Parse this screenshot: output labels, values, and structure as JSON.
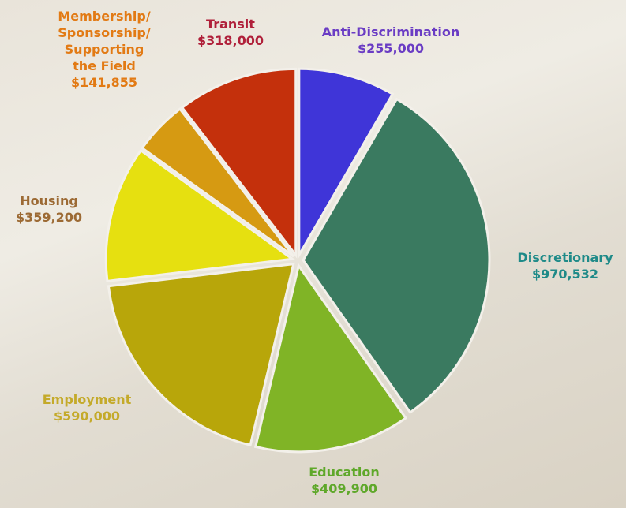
{
  "chart_data": {
    "type": "pie",
    "categories": [
      "Anti-Discrimination",
      "Discretionary",
      "Education",
      "Employment",
      "Housing",
      "Membership/ Sponsorship/ Supporting the Field",
      "Transit"
    ],
    "values": [
      255000,
      970532,
      409900,
      590000,
      359200,
      141855,
      318000
    ],
    "value_labels": [
      "$255,000",
      "$970,532",
      "$409,900",
      "$590,000",
      "$359,200",
      "$141,855",
      "$318,000"
    ],
    "colors": [
      "#3f35d8",
      "#3a7a60",
      "#80b426",
      "#b8a60a",
      "#e6e010",
      "#d69a12",
      "#c4300c"
    ],
    "label_colors": [
      "#6a3cc4",
      "#1e8a88",
      "#5fa82a",
      "#c4aa2a",
      "#9c6a34",
      "#e27a14",
      "#b0203a"
    ]
  }
}
